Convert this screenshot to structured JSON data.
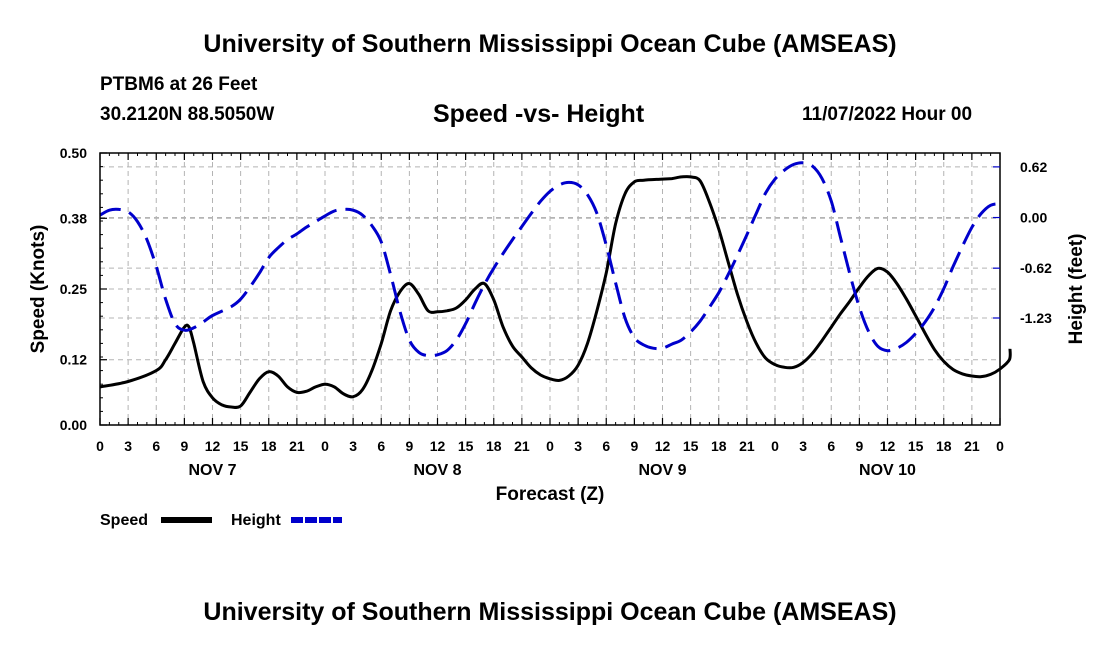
{
  "header": {
    "title": "University of Southern Mississippi Ocean Cube (AMSEAS)",
    "station": "PTBM6 at 26 Feet",
    "coords": "30.2120N  88.5050W",
    "subtitle": "Speed -vs- Height",
    "datetime": "11/07/2022 Hour 00"
  },
  "footer": {
    "title": "University of Southern Mississippi Ocean Cube (AMSEAS)"
  },
  "chart_data": {
    "type": "line",
    "xlabel": "Forecast (Z)",
    "ylabel_left": "Speed (Knots)",
    "ylabel_right": "Height (feet)",
    "x_range": [
      0,
      96
    ],
    "y_left_range": [
      0,
      0.5
    ],
    "y_right_range": [
      -2.54,
      0.79
    ],
    "x_ticks": [
      0,
      3,
      6,
      9,
      12,
      15,
      18,
      21,
      24,
      27,
      30,
      33,
      36,
      39,
      42,
      45,
      48,
      51,
      54,
      57,
      60,
      63,
      66,
      69,
      72,
      75,
      78,
      81,
      84,
      87,
      90,
      93,
      96
    ],
    "x_tick_labels": [
      "0",
      "3",
      "6",
      "9",
      "12",
      "15",
      "18",
      "21",
      "0",
      "3",
      "6",
      "9",
      "12",
      "15",
      "18",
      "21",
      "0",
      "3",
      "6",
      "9",
      "12",
      "15",
      "18",
      "21",
      "0",
      "3",
      "6",
      "9",
      "12",
      "15",
      "18",
      "21",
      "0"
    ],
    "day_labels": [
      {
        "hour": 12,
        "label": "NOV 7"
      },
      {
        "hour": 36,
        "label": "NOV 8"
      },
      {
        "hour": 60,
        "label": "NOV 9"
      },
      {
        "hour": 84,
        "label": "NOV 10"
      }
    ],
    "y_left_ticks": [
      0.0,
      0.12,
      0.25,
      0.38,
      0.5
    ],
    "y_left_tick_labels": [
      "0.00",
      "0.12",
      "0.25",
      "0.38",
      "0.50"
    ],
    "y_right_ticks": [
      0.62,
      0.0,
      -0.62,
      -1.23
    ],
    "y_right_tick_labels": [
      "0.62",
      "0.00",
      "-0.62",
      "-1.23"
    ],
    "grid": true,
    "series": [
      {
        "name": "Speed",
        "axis": "left",
        "color": "#000000",
        "dash": "solid",
        "points": [
          [
            0,
            0.07
          ],
          [
            3,
            0.08
          ],
          [
            6,
            0.1
          ],
          [
            7,
            0.12
          ],
          [
            8,
            0.15
          ],
          [
            9,
            0.18
          ],
          [
            9.5,
            0.18
          ],
          [
            10,
            0.15
          ],
          [
            11,
            0.08
          ],
          [
            12,
            0.05
          ],
          [
            13,
            0.037
          ],
          [
            14,
            0.033
          ],
          [
            15,
            0.035
          ],
          [
            16,
            0.06
          ],
          [
            17,
            0.085
          ],
          [
            18,
            0.098
          ],
          [
            19,
            0.09
          ],
          [
            20,
            0.07
          ],
          [
            21,
            0.06
          ],
          [
            22,
            0.062
          ],
          [
            23,
            0.07
          ],
          [
            24,
            0.075
          ],
          [
            25,
            0.07
          ],
          [
            26,
            0.057
          ],
          [
            27,
            0.052
          ],
          [
            28,
            0.065
          ],
          [
            29,
            0.1
          ],
          [
            30,
            0.15
          ],
          [
            31,
            0.21
          ],
          [
            32,
            0.245
          ],
          [
            33,
            0.26
          ],
          [
            34,
            0.24
          ],
          [
            35,
            0.21
          ],
          [
            36,
            0.208
          ],
          [
            37,
            0.21
          ],
          [
            38,
            0.215
          ],
          [
            39,
            0.23
          ],
          [
            40,
            0.25
          ],
          [
            41,
            0.26
          ],
          [
            42,
            0.23
          ],
          [
            43,
            0.18
          ],
          [
            44,
            0.145
          ],
          [
            45,
            0.125
          ],
          [
            46,
            0.105
          ],
          [
            47,
            0.092
          ],
          [
            48,
            0.085
          ],
          [
            49,
            0.082
          ],
          [
            50,
            0.09
          ],
          [
            51,
            0.11
          ],
          [
            52,
            0.15
          ],
          [
            53,
            0.21
          ],
          [
            54,
            0.28
          ],
          [
            55,
            0.37
          ],
          [
            56,
            0.425
          ],
          [
            57,
            0.447
          ],
          [
            58,
            0.45
          ],
          [
            60,
            0.452
          ],
          [
            61,
            0.453
          ],
          [
            62,
            0.456
          ],
          [
            63,
            0.456
          ],
          [
            64,
            0.449
          ],
          [
            65,
            0.41
          ],
          [
            66,
            0.36
          ],
          [
            67,
            0.3
          ],
          [
            68,
            0.24
          ],
          [
            69,
            0.19
          ],
          [
            70,
            0.15
          ],
          [
            71,
            0.123
          ],
          [
            72,
            0.111
          ],
          [
            73,
            0.106
          ],
          [
            74,
            0.106
          ],
          [
            75,
            0.115
          ],
          [
            76,
            0.132
          ],
          [
            77,
            0.155
          ],
          [
            78,
            0.18
          ],
          [
            79,
            0.205
          ],
          [
            80,
            0.228
          ],
          [
            81,
            0.253
          ],
          [
            82,
            0.275
          ],
          [
            83,
            0.288
          ],
          [
            84,
            0.281
          ],
          [
            85,
            0.26
          ],
          [
            86,
            0.232
          ],
          [
            87,
            0.201
          ],
          [
            88,
            0.169
          ],
          [
            89,
            0.139
          ],
          [
            90,
            0.117
          ],
          [
            91,
            0.102
          ],
          [
            92,
            0.094
          ],
          [
            93,
            0.09
          ],
          [
            94,
            0.089
          ],
          [
            95,
            0.093
          ],
          [
            96,
            0.103
          ],
          [
            97,
            0.12
          ],
          [
            97.5,
            0.14
          ]
        ]
      },
      {
        "name": "Height",
        "axis": "right",
        "color": "#0000cc",
        "dash": "dashed",
        "points": [
          [
            0,
            0.03
          ],
          [
            1,
            0.09
          ],
          [
            2,
            0.1
          ],
          [
            3,
            0.07
          ],
          [
            4,
            -0.05
          ],
          [
            5,
            -0.27
          ],
          [
            6,
            -0.6
          ],
          [
            7,
            -1.0
          ],
          [
            8,
            -1.3
          ],
          [
            9,
            -1.38
          ],
          [
            10,
            -1.35
          ],
          [
            11,
            -1.28
          ],
          [
            12,
            -1.2
          ],
          [
            14,
            -1.09
          ],
          [
            15,
            -1.0
          ],
          [
            16,
            -0.85
          ],
          [
            17,
            -0.68
          ],
          [
            18,
            -0.49
          ],
          [
            19,
            -0.37
          ],
          [
            20,
            -0.27
          ],
          [
            21,
            -0.2
          ],
          [
            22,
            -0.12
          ],
          [
            23,
            -0.05
          ],
          [
            24,
            0.02
          ],
          [
            25,
            0.08
          ],
          [
            26,
            0.1
          ],
          [
            27,
            0.09
          ],
          [
            28,
            0.03
          ],
          [
            29,
            -0.1
          ],
          [
            30,
            -0.3
          ],
          [
            31,
            -0.7
          ],
          [
            32,
            -1.15
          ],
          [
            33,
            -1.5
          ],
          [
            34,
            -1.65
          ],
          [
            35,
            -1.69
          ],
          [
            36,
            -1.68
          ],
          [
            37,
            -1.63
          ],
          [
            38,
            -1.5
          ],
          [
            39,
            -1.3
          ],
          [
            40,
            -1.05
          ],
          [
            41,
            -0.82
          ],
          [
            42,
            -0.62
          ],
          [
            43,
            -0.44
          ],
          [
            44,
            -0.27
          ],
          [
            45,
            -0.11
          ],
          [
            46,
            0.05
          ],
          [
            47,
            0.2
          ],
          [
            48,
            0.32
          ],
          [
            49,
            0.4
          ],
          [
            50,
            0.43
          ],
          [
            51,
            0.4
          ],
          [
            52,
            0.28
          ],
          [
            53,
            0.05
          ],
          [
            54,
            -0.34
          ],
          [
            55,
            -0.8
          ],
          [
            56,
            -1.23
          ],
          [
            57,
            -1.47
          ],
          [
            58,
            -1.56
          ],
          [
            59,
            -1.6
          ],
          [
            60,
            -1.6
          ],
          [
            61,
            -1.55
          ],
          [
            62,
            -1.5
          ],
          [
            63,
            -1.4
          ],
          [
            64,
            -1.27
          ],
          [
            65,
            -1.1
          ],
          [
            66,
            -0.92
          ],
          [
            67,
            -0.7
          ],
          [
            68,
            -0.46
          ],
          [
            69,
            -0.21
          ],
          [
            70,
            0.05
          ],
          [
            71,
            0.3
          ],
          [
            72,
            0.47
          ],
          [
            73,
            0.58
          ],
          [
            74,
            0.65
          ],
          [
            75,
            0.67
          ],
          [
            76,
            0.63
          ],
          [
            77,
            0.48
          ],
          [
            78,
            0.2
          ],
          [
            79,
            -0.25
          ],
          [
            80,
            -0.7
          ],
          [
            81,
            -1.1
          ],
          [
            82,
            -1.4
          ],
          [
            83,
            -1.58
          ],
          [
            84,
            -1.63
          ],
          [
            85,
            -1.6
          ],
          [
            86,
            -1.53
          ],
          [
            87,
            -1.42
          ],
          [
            88,
            -1.28
          ],
          [
            89,
            -1.1
          ],
          [
            90,
            -0.87
          ],
          [
            91,
            -0.6
          ],
          [
            92,
            -0.35
          ],
          [
            93,
            -0.12
          ],
          [
            94,
            0.05
          ],
          [
            95,
            0.15
          ],
          [
            96,
            0.17
          ]
        ]
      }
    ],
    "legend": {
      "position": "bottom-left",
      "items": [
        {
          "label": "Speed",
          "color": "#000000",
          "dash": "solid"
        },
        {
          "label": "Height",
          "color": "#0000cc",
          "dash": "dashed"
        }
      ]
    }
  }
}
